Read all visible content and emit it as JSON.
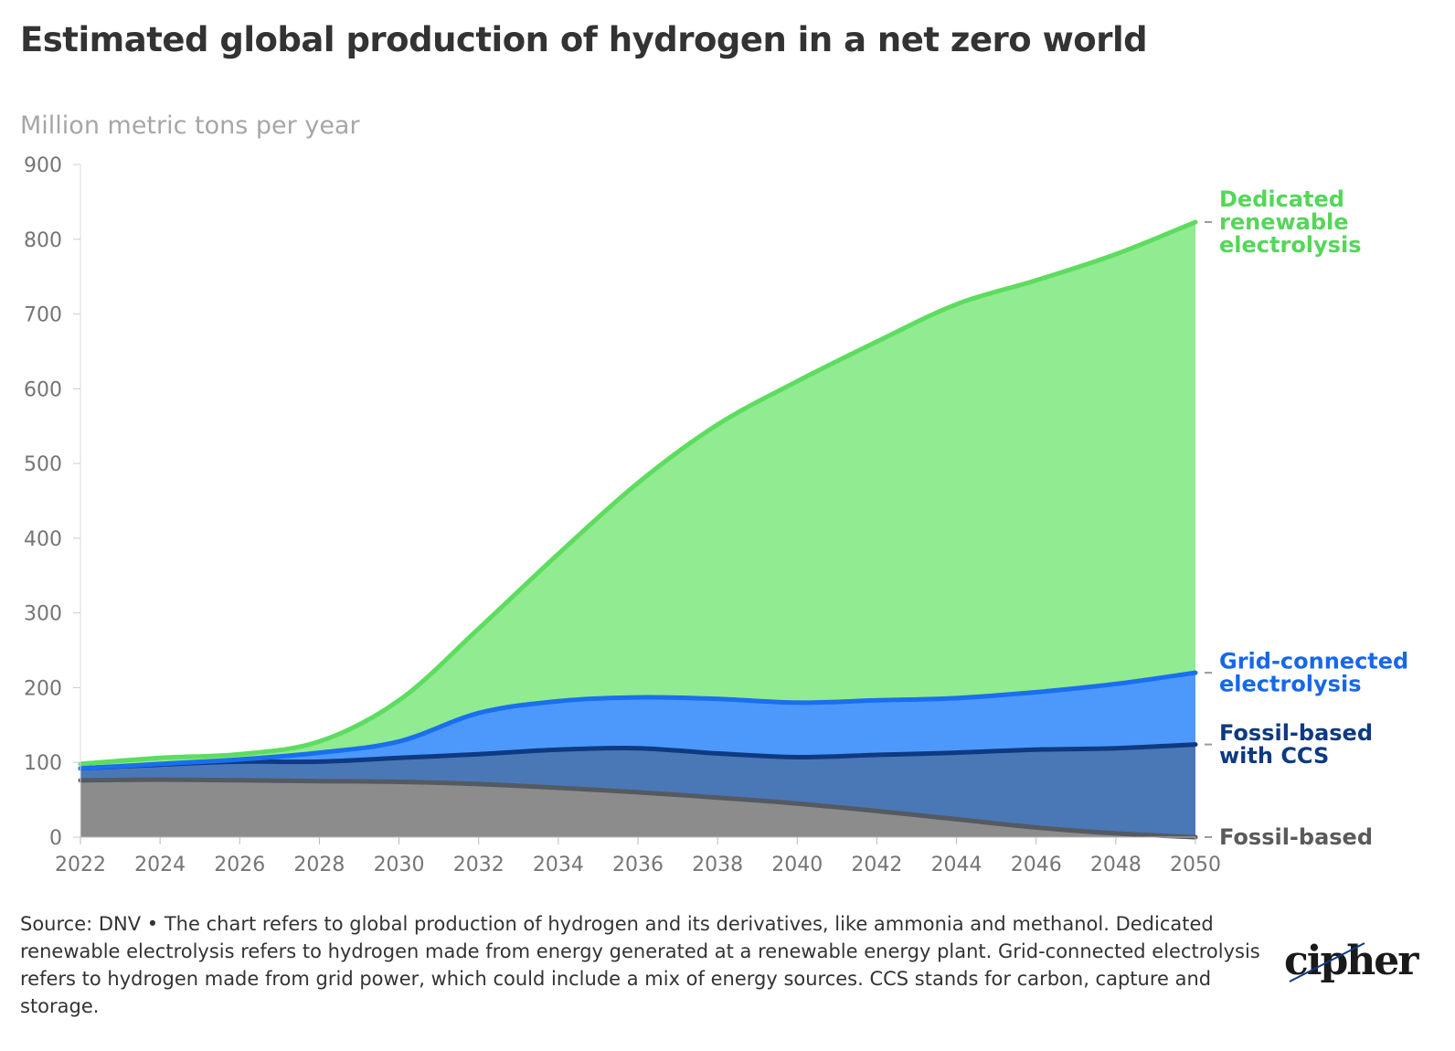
{
  "header": {
    "title": "Estimated global production of hydrogen in a net zero world",
    "subtitle": "Million metric tons per year"
  },
  "footer": {
    "source": "Source: DNV • The chart refers to global production of hydrogen and its derivatives, like ammonia and methanol. Dedicated renewable electrolysis refers to hydrogen made from energy generated at a renewable energy plant. Grid-connected electrolysis refers to hydrogen made from grid power, which could include a mix of energy sources. CCS stands for carbon, capture and storage.",
    "logo": "cipher"
  },
  "chart_data": {
    "type": "area",
    "stacked": true,
    "title": "Estimated global production of hydrogen in a net zero world",
    "ylabel": "Million metric tons per year",
    "xlim": [
      2022,
      2050
    ],
    "ylim": [
      0,
      900
    ],
    "x_ticks": [
      2022,
      2024,
      2026,
      2028,
      2030,
      2032,
      2034,
      2036,
      2038,
      2040,
      2042,
      2044,
      2046,
      2048,
      2050
    ],
    "y_ticks": [
      0,
      100,
      200,
      300,
      400,
      500,
      600,
      700,
      800,
      900
    ],
    "grid": false,
    "legend": "direct labels at right end",
    "x": [
      2022,
      2024,
      2026,
      2028,
      2030,
      2032,
      2034,
      2036,
      2038,
      2040,
      2042,
      2044,
      2046,
      2048,
      2050
    ],
    "series": [
      {
        "name": "Fossil-based",
        "label_lines": [
          "Fossil-based"
        ],
        "color": "#8c8c8c",
        "line_color": "#555a61",
        "label_color": "#5a5a5a",
        "values": [
          76,
          77,
          76,
          75,
          74,
          71,
          66,
          60,
          53,
          45,
          35,
          24,
          13,
          5,
          0
        ]
      },
      {
        "name": "Fossil-based with CCS",
        "label_lines": [
          "Fossil-based",
          "with CCS"
        ],
        "color": "#4a78b6",
        "line_color": "#0f3a82",
        "label_color": "#0d3a80",
        "values": [
          16,
          20,
          25,
          26,
          32,
          40,
          51,
          59,
          59,
          62,
          75,
          89,
          104,
          114,
          124
        ]
      },
      {
        "name": "Grid-connected electrolysis",
        "label_lines": [
          "Grid-connected",
          "electrolysis"
        ],
        "color": "#4d99fb",
        "line_color": "#1a6ef0",
        "label_color": "#1768e8",
        "values": [
          0,
          1,
          3,
          12,
          22,
          55,
          65,
          68,
          73,
          73,
          73,
          73,
          77,
          86,
          96
        ]
      },
      {
        "name": "Dedicated renewable electrolysis",
        "label_lines": [
          "Dedicated",
          "renewable",
          "electrolysis"
        ],
        "color": "#91eb90",
        "line_color": "#5edc60",
        "label_color": "#55d65a",
        "values": [
          6,
          8,
          7,
          15,
          55,
          113,
          197,
          287,
          367,
          430,
          480,
          527,
          551,
          575,
          603
        ]
      }
    ]
  }
}
